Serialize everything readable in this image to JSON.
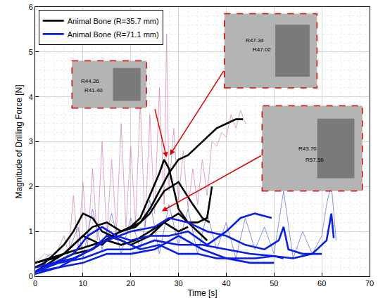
{
  "chart_data": {
    "type": "line",
    "x_label": "Time [s]",
    "y_label": "Magnitude of Drilling Force [N]",
    "xlim": [
      0,
      70
    ],
    "xticks": [
      0,
      10,
      20,
      30,
      40,
      50,
      60,
      70
    ],
    "ylim": [
      0,
      6
    ],
    "yticks": [
      0,
      1,
      2,
      3,
      4,
      5,
      6
    ],
    "grid": true,
    "legend": "upper left",
    "series": [
      {
        "color": "#c86aa8",
        "line_style": "thin",
        "x": [
          0,
          2,
          4,
          6,
          7,
          8,
          9,
          10,
          11,
          12,
          13,
          14,
          15,
          16,
          17,
          18,
          19,
          20,
          21,
          22,
          23,
          24,
          25,
          26,
          27,
          27.5,
          28,
          29,
          30,
          31,
          32,
          33,
          34,
          35,
          36,
          37,
          38,
          39,
          40,
          41,
          42,
          43,
          44
        ],
        "values": [
          0.3,
          0.5,
          0.4,
          0.9,
          0.5,
          1.8,
          0.6,
          2.1,
          0.7,
          2.4,
          0.8,
          3.0,
          0.9,
          2.6,
          1.0,
          3.4,
          1.1,
          2.9,
          1.2,
          3.9,
          1.1,
          3.6,
          1.4,
          4.2,
          1.6,
          5.4,
          1.9,
          3.3,
          1.7,
          2.8,
          1.5,
          2.4,
          1.6,
          2.6,
          1.8,
          3.0,
          2.9,
          3.2,
          3.1,
          3.6,
          3.3,
          3.7,
          3.4
        ]
      },
      {
        "color": "#3a4fd0",
        "line_style": "thin",
        "x": [
          0,
          3,
          6,
          9,
          10,
          12,
          14,
          16,
          18,
          20,
          22,
          24,
          26,
          28,
          30,
          32,
          34,
          36,
          38,
          40,
          42,
          44,
          46,
          48,
          50,
          52,
          54,
          56,
          58,
          60,
          61,
          62,
          63
        ],
        "values": [
          0.1,
          0.5,
          0.3,
          1.1,
          0.4,
          1.5,
          0.6,
          1.4,
          0.5,
          1.3,
          0.6,
          1.7,
          0.5,
          1.6,
          0.7,
          1.5,
          0.5,
          1.4,
          0.6,
          1.2,
          0.4,
          1.3,
          0.6,
          1.1,
          0.5,
          1.9,
          0.4,
          1.0,
          0.5,
          0.9,
          1.6,
          2.05,
          0.8
        ]
      },
      {
        "name": "Animal Bone (R=35.7 mm)",
        "color": "#000000",
        "x": [
          0,
          2,
          4,
          6,
          8,
          10,
          12,
          14,
          16,
          18,
          20,
          22,
          24,
          26,
          28,
          30,
          32,
          34,
          36,
          38,
          40,
          42,
          43.5
        ],
        "values": [
          0.3,
          0.35,
          0.4,
          0.5,
          0.7,
          0.9,
          0.8,
          0.7,
          0.9,
          1.0,
          1.1,
          1.2,
          1.5,
          1.9,
          2.3,
          2.6,
          2.7,
          2.9,
          3.1,
          3.3,
          3.4,
          3.5,
          3.5
        ]
      },
      {
        "color": "#000000",
        "x": [
          0,
          2,
          4,
          6,
          8,
          10,
          12,
          14,
          16,
          18,
          20,
          22,
          24,
          26,
          27,
          28,
          30,
          32,
          34,
          36,
          37
        ],
        "values": [
          0.2,
          0.3,
          0.5,
          0.7,
          1.0,
          1.4,
          1.3,
          1.0,
          0.9,
          1.0,
          1.1,
          1.3,
          1.8,
          2.3,
          2.6,
          2.4,
          1.5,
          1.2,
          1.2,
          1.3,
          2.0
        ]
      },
      {
        "color": "#000000",
        "x": [
          0,
          3,
          6,
          9,
          12,
          15,
          18,
          21,
          24,
          27,
          30,
          33,
          35,
          36.5
        ],
        "values": [
          0.1,
          0.3,
          0.5,
          0.8,
          1.1,
          1.2,
          1.0,
          1.1,
          1.4,
          1.9,
          2.1,
          1.6,
          1.3,
          1.2
        ]
      },
      {
        "color": "#000000",
        "x": [
          0,
          3,
          6,
          9,
          12,
          15,
          18,
          21,
          24,
          27,
          30,
          33,
          35,
          36
        ],
        "values": [
          0.3,
          0.4,
          0.5,
          0.6,
          0.7,
          0.8,
          0.7,
          0.8,
          1.0,
          1.2,
          1.4,
          1.1,
          0.9,
          0.8
        ]
      },
      {
        "color": "#000000",
        "x": [
          0,
          4,
          8,
          12,
          16,
          20,
          24,
          27,
          30,
          32
        ],
        "values": [
          0.2,
          0.3,
          0.5,
          0.6,
          0.9,
          0.7,
          0.9,
          1.2,
          1.0,
          1.1
        ]
      },
      {
        "name": "Animal Bone (R=71.1 mm)",
        "color": "#0a1ee6",
        "x": [
          0,
          4,
          8,
          12,
          15,
          18,
          22,
          26,
          30,
          34,
          38,
          42,
          46,
          50,
          54,
          58,
          61,
          62,
          62.5
        ],
        "values": [
          0.1,
          0.3,
          0.4,
          0.6,
          0.9,
          0.8,
          0.6,
          0.7,
          0.5,
          0.5,
          0.4,
          0.4,
          0.4,
          0.45,
          0.4,
          0.5,
          0.8,
          1.4,
          0.85
        ]
      },
      {
        "color": "#0a1ee6",
        "x": [
          0,
          4,
          8,
          11,
          14,
          17,
          20,
          24,
          28,
          32,
          36,
          40,
          43,
          46,
          49.5
        ],
        "values": [
          0.2,
          0.3,
          0.5,
          0.9,
          1.1,
          0.9,
          0.8,
          0.9,
          0.9,
          1.0,
          0.7,
          1.0,
          1.3,
          1.4,
          1.3
        ]
      },
      {
        "color": "#0a1ee6",
        "x": [
          0,
          5,
          10,
          15,
          20,
          25,
          28,
          32,
          36,
          40,
          44,
          48,
          51,
          52,
          53,
          56,
          60
        ],
        "values": [
          0.1,
          0.2,
          0.5,
          0.8,
          1.0,
          1.1,
          1.3,
          1.2,
          1.0,
          0.9,
          0.7,
          0.6,
          0.8,
          1.1,
          0.6,
          0.5,
          0.5
        ]
      },
      {
        "color": "#0a1ee6",
        "x": [
          0,
          5,
          10,
          15,
          20,
          25,
          30,
          35,
          40,
          45,
          50,
          52
        ],
        "values": [
          0.1,
          0.3,
          0.4,
          0.6,
          0.6,
          0.8,
          0.7,
          0.7,
          0.6,
          0.5,
          0.45,
          0.4
        ]
      },
      {
        "color": "#0a1ee6",
        "x": [
          0,
          5,
          10,
          15,
          20,
          25,
          30,
          35,
          40,
          45,
          50
        ],
        "values": [
          0.05,
          0.2,
          0.3,
          0.5,
          0.5,
          0.6,
          0.9,
          0.6,
          0.4,
          0.3,
          0.3
        ]
      }
    ],
    "annotations": [
      {
        "labels": [
          "R44.26",
          "R41.40"
        ]
      },
      {
        "labels": [
          "R47.34",
          "R47.02"
        ]
      },
      {
        "labels": [
          "R43.70",
          "R57.56"
        ]
      }
    ]
  }
}
